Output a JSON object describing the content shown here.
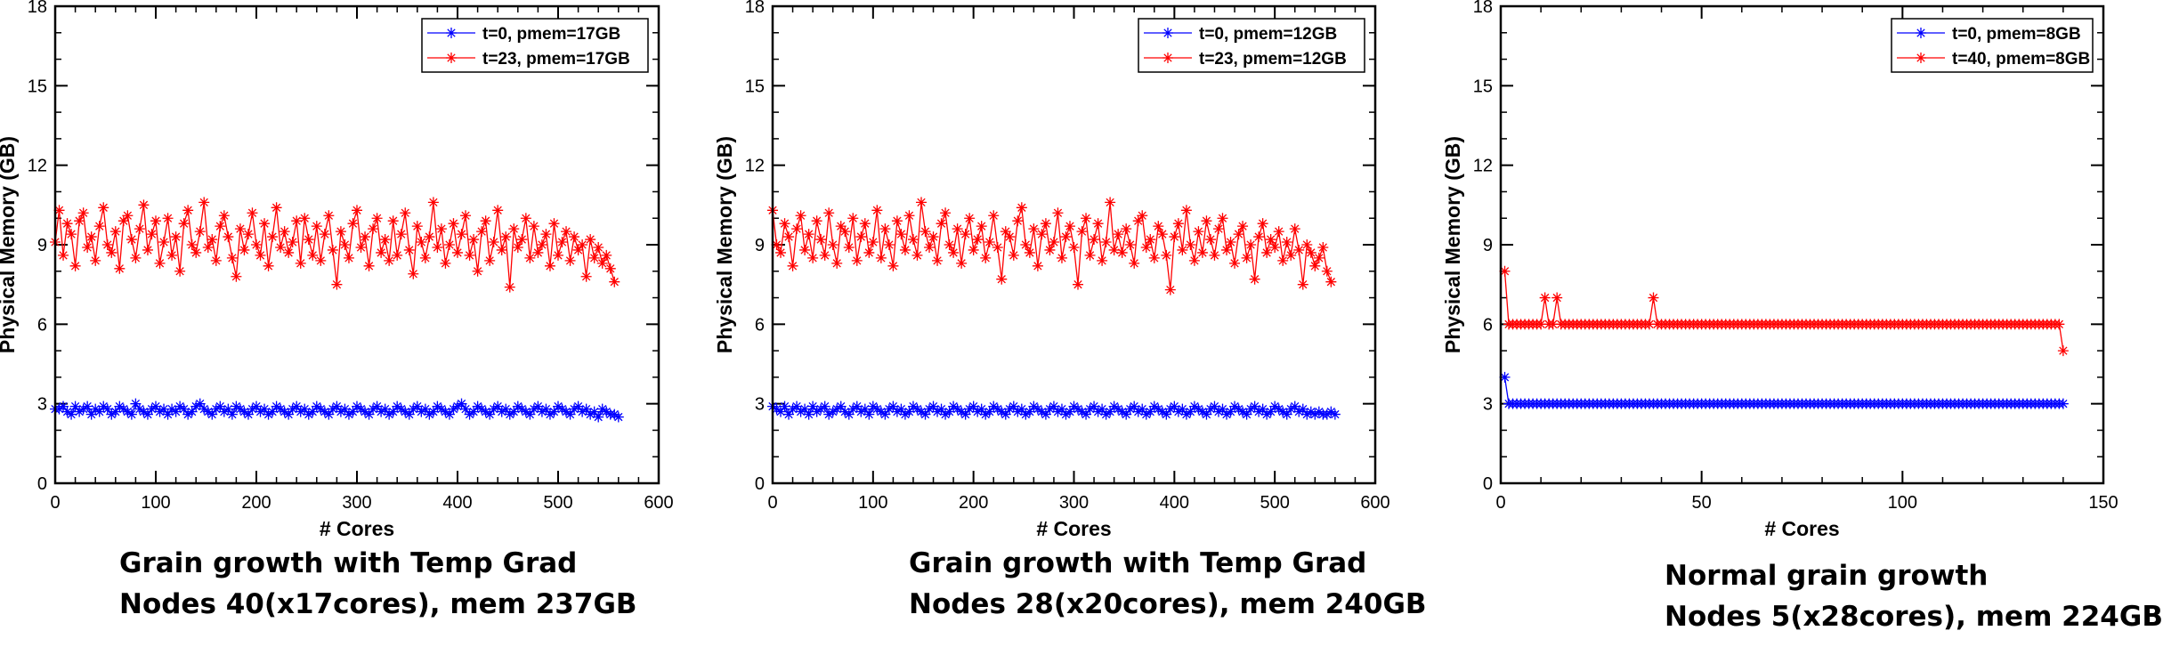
{
  "chart_data": [
    {
      "type": "line",
      "xlabel": "# Cores",
      "ylabel": "Physical Memory (GB)",
      "xlim": [
        0,
        600
      ],
      "ylim": [
        0,
        18
      ],
      "xticks": [
        0,
        100,
        200,
        300,
        400,
        500,
        600
      ],
      "yticks": [
        0,
        3,
        6,
        9,
        12,
        15,
        18
      ],
      "grid": false,
      "legend_placement": "top-right",
      "caption": [
        "Grain growth with Temp Grad",
        "Nodes 40(x17cores), mem 237GB"
      ],
      "series": [
        {
          "name": "t=0, pmem=17GB",
          "color": "#0000ff",
          "marker": "asterisk",
          "x_start": 0,
          "x_step": 4,
          "values": [
            2.8,
            2.8,
            2.9,
            2.7,
            2.6,
            2.9,
            2.7,
            2.8,
            2.9,
            2.6,
            2.8,
            2.7,
            2.9,
            2.8,
            2.6,
            2.7,
            2.9,
            2.8,
            2.7,
            2.6,
            3.0,
            2.8,
            2.7,
            2.6,
            2.8,
            2.9,
            2.7,
            2.8,
            2.6,
            2.8,
            2.7,
            2.9,
            2.8,
            2.6,
            2.7,
            2.9,
            3.0,
            2.8,
            2.7,
            2.6,
            2.8,
            2.9,
            2.7,
            2.8,
            2.6,
            2.9,
            2.8,
            2.7,
            2.6,
            2.8,
            2.9,
            2.7,
            2.8,
            2.6,
            2.7,
            2.9,
            2.8,
            2.7,
            2.6,
            2.8,
            2.9,
            2.7,
            2.8,
            2.6,
            2.7,
            2.9,
            2.8,
            2.7,
            2.6,
            2.8,
            2.9,
            2.7,
            2.8,
            2.6,
            2.7,
            2.9,
            2.8,
            2.7,
            2.6,
            2.8,
            2.9,
            2.7,
            2.8,
            2.6,
            2.7,
            2.9,
            2.8,
            2.7,
            2.6,
            2.8,
            2.9,
            2.7,
            2.8,
            2.6,
            2.7,
            2.9,
            2.8,
            2.7,
            2.6,
            2.8,
            2.9,
            3.0,
            2.8,
            2.6,
            2.7,
            2.9,
            2.8,
            2.7,
            2.6,
            2.8,
            2.9,
            2.7,
            2.8,
            2.6,
            2.7,
            2.9,
            2.8,
            2.7,
            2.6,
            2.8,
            2.9,
            2.7,
            2.8,
            2.6,
            2.7,
            2.9,
            2.8,
            2.7,
            2.6,
            2.8,
            2.9,
            2.7,
            2.8,
            2.6,
            2.7,
            2.5,
            2.8,
            2.7,
            2.6,
            2.6,
            2.5
          ]
        },
        {
          "name": "t=23, pmem=17GB",
          "color": "#ff0000",
          "marker": "asterisk",
          "x_start": 0,
          "x_step": 4,
          "values": [
            9.1,
            10.3,
            8.6,
            9.8,
            9.4,
            8.2,
            9.9,
            10.2,
            8.9,
            9.3,
            8.4,
            9.7,
            10.4,
            9.0,
            8.7,
            9.5,
            8.1,
            9.9,
            10.1,
            9.2,
            8.5,
            9.6,
            10.5,
            8.8,
            9.4,
            9.9,
            8.3,
            9.1,
            10.0,
            8.6,
            9.3,
            8.0,
            9.8,
            10.3,
            9.0,
            8.7,
            9.5,
            10.6,
            8.9,
            9.2,
            8.4,
            9.7,
            10.1,
            9.3,
            8.5,
            7.8,
            9.6,
            8.8,
            9.4,
            10.2,
            9.0,
            8.6,
            9.8,
            8.2,
            9.3,
            10.4,
            8.9,
            9.5,
            8.7,
            9.1,
            9.9,
            8.3,
            10.0,
            9.2,
            8.6,
            9.7,
            8.4,
            9.4,
            10.1,
            8.8,
            7.5,
            9.5,
            9.0,
            8.5,
            9.8,
            10.3,
            8.9,
            9.3,
            8.2,
            9.6,
            10.0,
            8.7,
            9.2,
            8.4,
            9.9,
            8.6,
            9.4,
            10.2,
            8.8,
            7.9,
            9.7,
            9.1,
            8.5,
            9.3,
            10.6,
            8.9,
            9.6,
            8.3,
            9.0,
            9.8,
            8.7,
            9.4,
            10.1,
            8.6,
            9.2,
            8.0,
            9.5,
            9.9,
            8.4,
            9.1,
            10.3,
            8.8,
            9.3,
            7.4,
            9.6,
            8.9,
            9.2,
            10.0,
            8.5,
            9.7,
            8.7,
            9.0,
            9.4,
            8.2,
            9.8,
            8.6,
            9.1,
            9.5,
            8.4,
            9.3,
            8.8,
            9.0,
            7.8,
            9.2,
            8.5,
            8.9,
            8.3,
            8.6,
            8.1,
            7.6
          ]
        }
      ]
    },
    {
      "type": "line",
      "xlabel": "# Cores",
      "ylabel": "Physical Memory (GB)",
      "xlim": [
        0,
        600
      ],
      "ylim": [
        0,
        18
      ],
      "xticks": [
        0,
        100,
        200,
        300,
        400,
        500,
        600
      ],
      "yticks": [
        0,
        3,
        6,
        9,
        12,
        15,
        18
      ],
      "grid": false,
      "legend_placement": "top-right",
      "caption": [
        "Grain growth with Temp Grad",
        "Nodes 28(x20cores), mem 240GB"
      ],
      "series": [
        {
          "name": "t=0, pmem=12GB",
          "color": "#0000ff",
          "marker": "asterisk",
          "x_start": 0,
          "x_step": 4,
          "values": [
            2.9,
            2.8,
            2.7,
            2.9,
            2.6,
            2.8,
            2.9,
            2.7,
            2.8,
            2.6,
            2.9,
            2.7,
            2.8,
            2.9,
            2.6,
            2.7,
            2.8,
            2.9,
            2.7,
            2.6,
            2.8,
            2.9,
            2.7,
            2.8,
            2.6,
            2.9,
            2.8,
            2.7,
            2.6,
            2.8,
            2.9,
            2.7,
            2.8,
            2.6,
            2.7,
            2.9,
            2.8,
            2.7,
            2.6,
            2.8,
            2.9,
            2.7,
            2.8,
            2.6,
            2.7,
            2.9,
            2.8,
            2.7,
            2.6,
            2.8,
            2.9,
            2.7,
            2.8,
            2.6,
            2.7,
            2.9,
            2.8,
            2.7,
            2.6,
            2.8,
            2.9,
            2.7,
            2.8,
            2.6,
            2.7,
            2.9,
            2.8,
            2.7,
            2.6,
            2.8,
            2.9,
            2.7,
            2.8,
            2.6,
            2.7,
            2.9,
            2.8,
            2.7,
            2.6,
            2.8,
            2.9,
            2.7,
            2.8,
            2.6,
            2.7,
            2.9,
            2.8,
            2.7,
            2.6,
            2.8,
            2.9,
            2.7,
            2.8,
            2.6,
            2.7,
            2.9,
            2.8,
            2.7,
            2.6,
            2.8,
            2.9,
            2.7,
            2.8,
            2.6,
            2.7,
            2.9,
            2.8,
            2.7,
            2.6,
            2.8,
            2.9,
            2.7,
            2.8,
            2.6,
            2.7,
            2.9,
            2.8,
            2.7,
            2.6,
            2.8,
            2.9,
            2.7,
            2.8,
            2.6,
            2.7,
            2.9,
            2.8,
            2.7,
            2.6,
            2.8,
            2.9,
            2.7,
            2.8,
            2.6,
            2.7,
            2.6,
            2.7,
            2.6,
            2.6,
            2.7,
            2.6
          ]
        },
        {
          "name": "t=23, pmem=12GB",
          "color": "#ff0000",
          "marker": "asterisk",
          "x_start": 0,
          "x_step": 4,
          "values": [
            10.3,
            9.0,
            8.7,
            9.8,
            9.3,
            8.2,
            9.6,
            10.1,
            8.8,
            9.4,
            8.5,
            9.9,
            9.2,
            8.6,
            10.2,
            9.0,
            8.3,
            9.7,
            9.5,
            8.9,
            10.0,
            8.4,
            9.3,
            9.8,
            8.7,
            9.1,
            10.3,
            8.5,
            9.6,
            9.0,
            8.2,
            9.9,
            9.4,
            8.8,
            10.1,
            9.2,
            8.6,
            10.6,
            9.5,
            8.9,
            9.3,
            8.4,
            9.8,
            10.2,
            9.0,
            8.7,
            9.6,
            8.3,
            9.4,
            10.0,
            8.8,
            9.2,
            9.7,
            8.5,
            9.1,
            10.1,
            8.9,
            7.7,
            9.5,
            9.3,
            8.6,
            9.9,
            10.4,
            9.0,
            8.7,
            9.6,
            8.2,
            9.4,
            9.8,
            8.8,
            9.1,
            10.2,
            8.5,
            9.3,
            9.7,
            8.9,
            7.5,
            9.5,
            10.0,
            8.6,
            9.2,
            9.8,
            8.4,
            9.1,
            10.6,
            8.8,
            9.4,
            8.7,
            9.6,
            9.0,
            8.3,
            9.9,
            10.1,
            8.9,
            9.2,
            8.5,
            9.7,
            9.4,
            8.6,
            7.3,
            9.3,
            9.8,
            8.8,
            10.3,
            9.0,
            8.4,
            9.5,
            8.7,
            9.9,
            9.2,
            8.6,
            9.6,
            10.0,
            8.8,
            9.1,
            8.3,
            9.4,
            9.7,
            8.5,
            9.0,
            7.7,
            9.3,
            9.8,
            8.7,
            9.2,
            8.9,
            9.5,
            8.4,
            9.1,
            8.6,
            9.6,
            8.8,
            7.5,
            9.0,
            8.7,
            8.2,
            8.5,
            8.9,
            8.0,
            7.6
          ]
        }
      ]
    },
    {
      "type": "line",
      "xlabel": "# Cores",
      "ylabel": "Physical Memory (GB)",
      "xlim": [
        0,
        150
      ],
      "ylim": [
        0,
        18
      ],
      "xticks": [
        0,
        50,
        100,
        150
      ],
      "yticks": [
        0,
        3,
        6,
        9,
        12,
        15,
        18
      ],
      "grid": false,
      "legend_placement": "top-right",
      "caption": [
        "Normal grain growth",
        "Nodes 5(x28cores), mem 224GB"
      ],
      "series": [
        {
          "name": "t=0, pmem=8GB",
          "color": "#0000ff",
          "marker": "asterisk",
          "x_start": 1,
          "x_step": 1,
          "values": [
            4,
            3,
            3,
            3,
            3,
            3,
            3,
            3,
            3,
            3,
            3,
            3,
            3,
            3,
            3,
            3,
            3,
            3,
            3,
            3,
            3,
            3,
            3,
            3,
            3,
            3,
            3,
            3,
            3,
            3,
            3,
            3,
            3,
            3,
            3,
            3,
            3,
            3,
            3,
            3,
            3,
            3,
            3,
            3,
            3,
            3,
            3,
            3,
            3,
            3,
            3,
            3,
            3,
            3,
            3,
            3,
            3,
            3,
            3,
            3,
            3,
            3,
            3,
            3,
            3,
            3,
            3,
            3,
            3,
            3,
            3,
            3,
            3,
            3,
            3,
            3,
            3,
            3,
            3,
            3,
            3,
            3,
            3,
            3,
            3,
            3,
            3,
            3,
            3,
            3,
            3,
            3,
            3,
            3,
            3,
            3,
            3,
            3,
            3,
            3,
            3,
            3,
            3,
            3,
            3,
            3,
            3,
            3,
            3,
            3,
            3,
            3,
            3,
            3,
            3,
            3,
            3,
            3,
            3,
            3,
            3,
            3,
            3,
            3,
            3,
            3,
            3,
            3,
            3,
            3,
            3,
            3,
            3,
            3,
            3,
            3,
            3,
            3,
            3,
            3
          ]
        },
        {
          "name": "t=40, pmem=8GB",
          "color": "#ff0000",
          "marker": "asterisk",
          "x_start": 1,
          "x_step": 1,
          "values": [
            8,
            6,
            6,
            6,
            6,
            6,
            6,
            6,
            6,
            6,
            7,
            6,
            6,
            7,
            6,
            6,
            6,
            6,
            6,
            6,
            6,
            6,
            6,
            6,
            6,
            6,
            6,
            6,
            6,
            6,
            6,
            6,
            6,
            6,
            6,
            6,
            6,
            7,
            6,
            6,
            6,
            6,
            6,
            6,
            6,
            6,
            6,
            6,
            6,
            6,
            6,
            6,
            6,
            6,
            6,
            6,
            6,
            6,
            6,
            6,
            6,
            6,
            6,
            6,
            6,
            6,
            6,
            6,
            6,
            6,
            6,
            6,
            6,
            6,
            6,
            6,
            6,
            6,
            6,
            6,
            6,
            6,
            6,
            6,
            6,
            6,
            6,
            6,
            6,
            6,
            6,
            6,
            6,
            6,
            6,
            6,
            6,
            6,
            6,
            6,
            6,
            6,
            6,
            6,
            6,
            6,
            6,
            6,
            6,
            6,
            6,
            6,
            6,
            6,
            6,
            6,
            6,
            6,
            6,
            6,
            6,
            6,
            6,
            6,
            6,
            6,
            6,
            6,
            6,
            6,
            6,
            6,
            6,
            6,
            6,
            6,
            6,
            6,
            6,
            5
          ]
        }
      ]
    }
  ]
}
